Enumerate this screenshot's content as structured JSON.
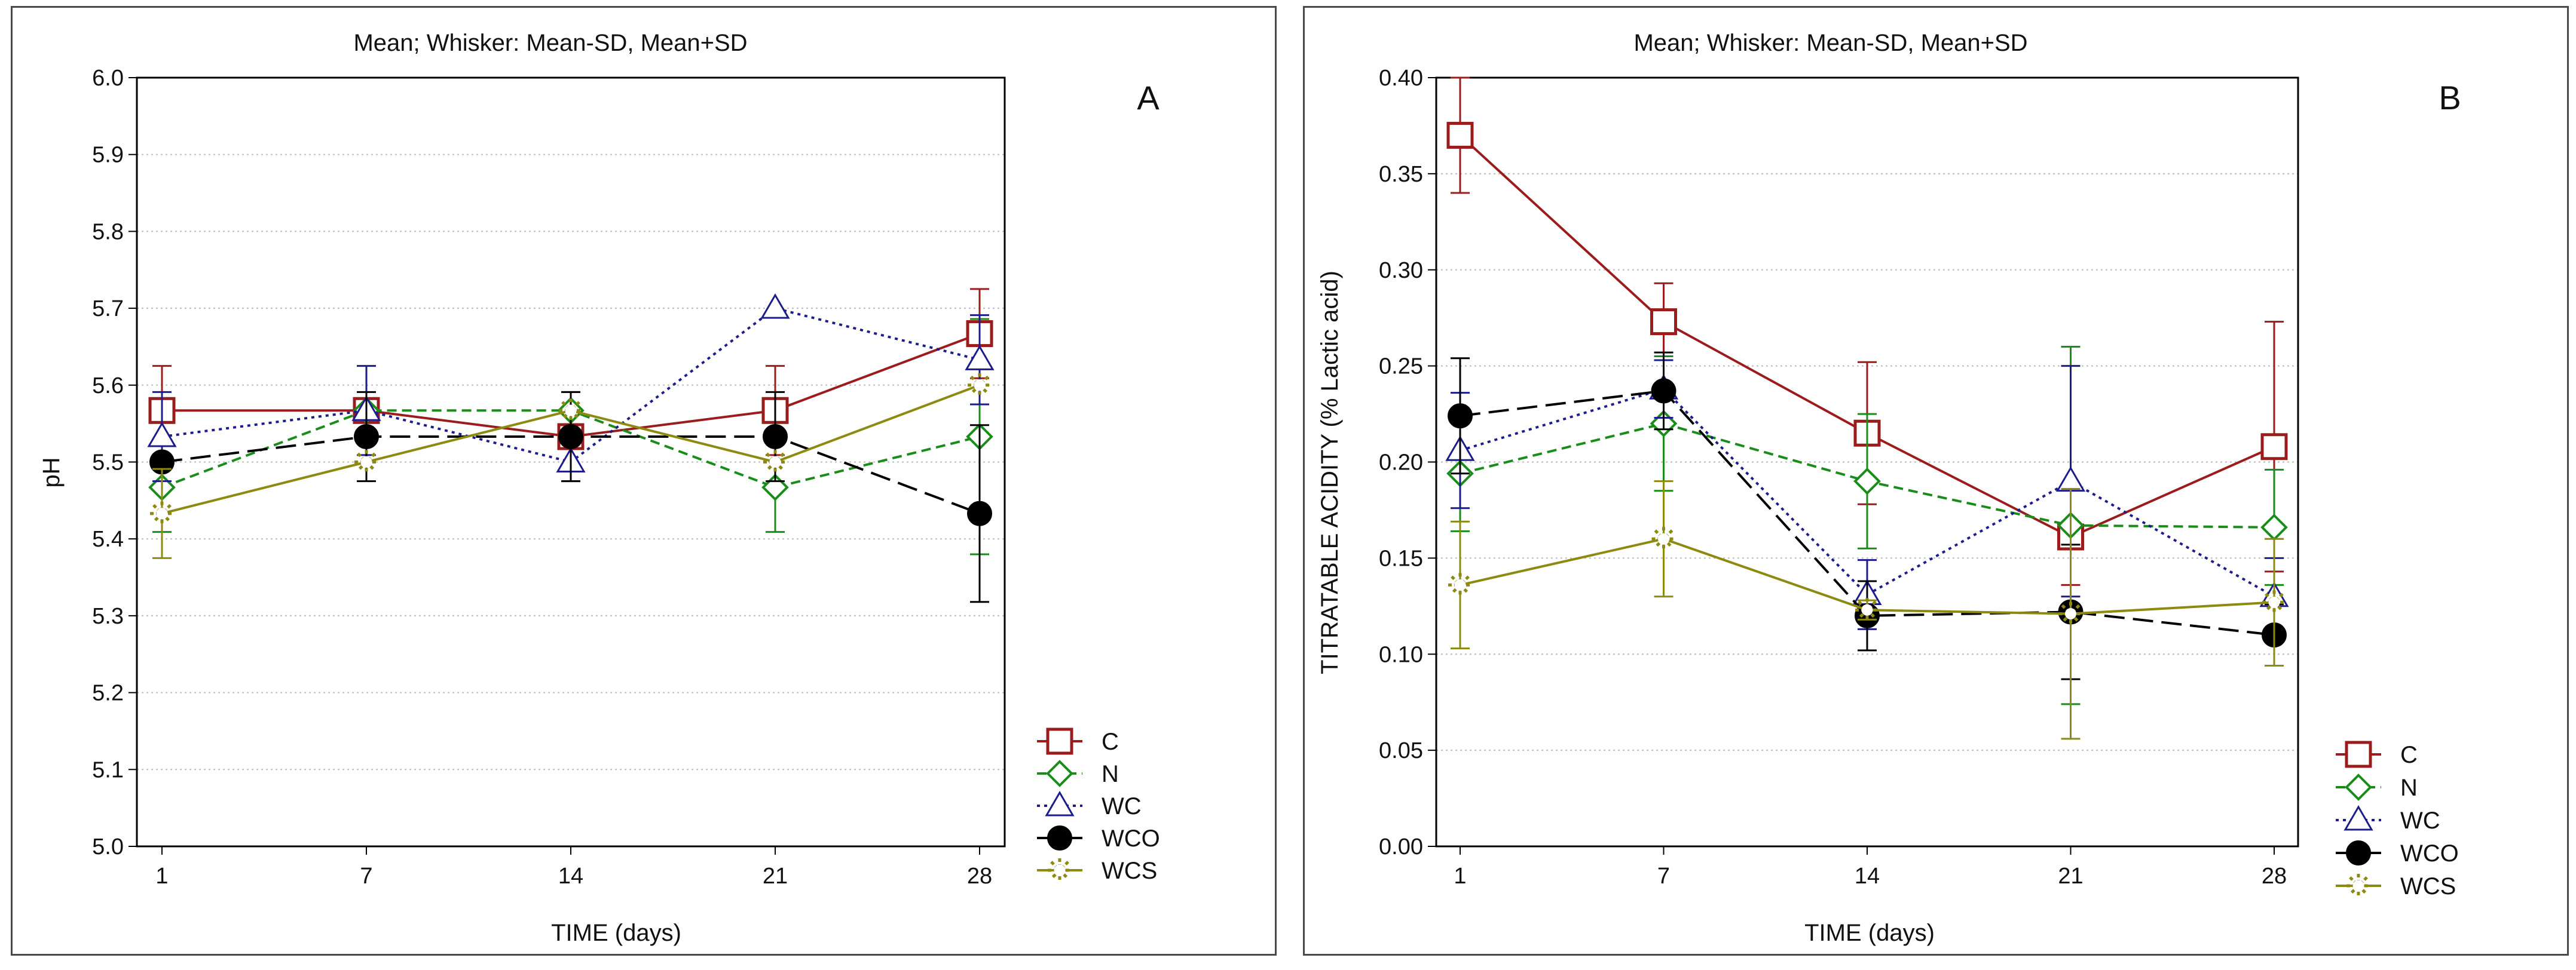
{
  "chart_data": [
    {
      "type": "line",
      "panel_label": "A",
      "subtitle": "Mean;  Whisker: Mean-SD, Mean+SD",
      "xlabel": "TIME (days)",
      "ylabel": "pH",
      "categories": [
        "1",
        "7",
        "14",
        "21",
        "28"
      ],
      "ylim": [
        5.0,
        6.0
      ],
      "yticks": [
        "5.0",
        "5.1",
        "5.2",
        "5.3",
        "5.4",
        "5.5",
        "5.6",
        "5.7",
        "5.8",
        "5.9",
        "6.0"
      ],
      "grid": true,
      "legend_position": "bottom-right",
      "series": [
        {
          "name": "C",
          "values": [
            5.567,
            5.567,
            5.533,
            5.567,
            5.667
          ],
          "sd": [
            0.058,
            0.0,
            0.058,
            0.058,
            0.058
          ],
          "color": "#9b1c1c",
          "marker": "square",
          "dash": "solid"
        },
        {
          "name": "N",
          "values": [
            5.467,
            5.567,
            5.567,
            5.467,
            5.533
          ],
          "sd": [
            0.058,
            0.0,
            0.0,
            0.058,
            0.153
          ],
          "color": "#1a8c1a",
          "marker": "diamond",
          "dash": "dash"
        },
        {
          "name": "WC",
          "values": [
            5.533,
            5.567,
            5.5,
            5.7,
            5.633
          ],
          "sd": [
            0.058,
            0.058,
            0.0,
            0.0,
            0.058
          ],
          "color": "#1c1c8c",
          "marker": "triangle",
          "dash": "dot"
        },
        {
          "name": "WCO",
          "values": [
            5.5,
            5.533,
            5.533,
            5.533,
            5.433
          ],
          "sd": [
            0.0,
            0.058,
            0.058,
            0.058,
            0.115
          ],
          "color": "#000000",
          "marker": "circle",
          "dash": "longdash"
        },
        {
          "name": "WCS",
          "values": [
            5.433,
            5.5,
            5.567,
            5.5,
            5.6
          ],
          "sd": [
            0.058,
            0.0,
            0.0,
            0.0,
            0.0
          ],
          "color": "#8c8a10",
          "marker": "star",
          "dash": "solid"
        }
      ]
    },
    {
      "type": "line",
      "panel_label": "B",
      "subtitle": "Mean;  Whisker: Mean-SD, Mean+SD",
      "xlabel": "TIME (days)",
      "ylabel": "TITRATABLE ACIDITY (% Lactic acid)",
      "categories": [
        "1",
        "7",
        "14",
        "21",
        "28"
      ],
      "ylim": [
        0.0,
        0.4
      ],
      "yticks": [
        "0.00",
        "0.05",
        "0.10",
        "0.15",
        "0.20",
        "0.25",
        "0.30",
        "0.35",
        "0.40"
      ],
      "grid": true,
      "legend_position": "bottom-right",
      "series": [
        {
          "name": "C",
          "values": [
            0.37,
            0.273,
            0.215,
            0.161,
            0.208
          ],
          "sd": [
            0.03,
            0.02,
            0.037,
            0.025,
            0.065
          ],
          "color": "#9b1c1c",
          "marker": "square",
          "dash": "solid"
        },
        {
          "name": "N",
          "values": [
            0.194,
            0.22,
            0.19,
            0.167,
            0.166
          ],
          "sd": [
            0.03,
            0.035,
            0.035,
            0.093,
            0.03
          ],
          "color": "#1a8c1a",
          "marker": "diamond",
          "dash": "dash"
        },
        {
          "name": "WC",
          "values": [
            0.206,
            0.238,
            0.131,
            0.19,
            0.13
          ],
          "sd": [
            0.03,
            0.015,
            0.018,
            0.06,
            0.02
          ],
          "color": "#1c1c8c",
          "marker": "triangle",
          "dash": "dot"
        },
        {
          "name": "WCO",
          "values": [
            0.224,
            0.237,
            0.12,
            0.122,
            0.11
          ],
          "sd": [
            0.03,
            0.02,
            0.018,
            0.035,
            0.016
          ],
          "color": "#000000",
          "marker": "circle",
          "dash": "longdash"
        },
        {
          "name": "WCS",
          "values": [
            0.136,
            0.16,
            0.123,
            0.121,
            0.127
          ],
          "sd": [
            0.033,
            0.03,
            0.005,
            0.065,
            0.033
          ],
          "color": "#8c8a10",
          "marker": "star",
          "dash": "solid"
        }
      ]
    }
  ]
}
